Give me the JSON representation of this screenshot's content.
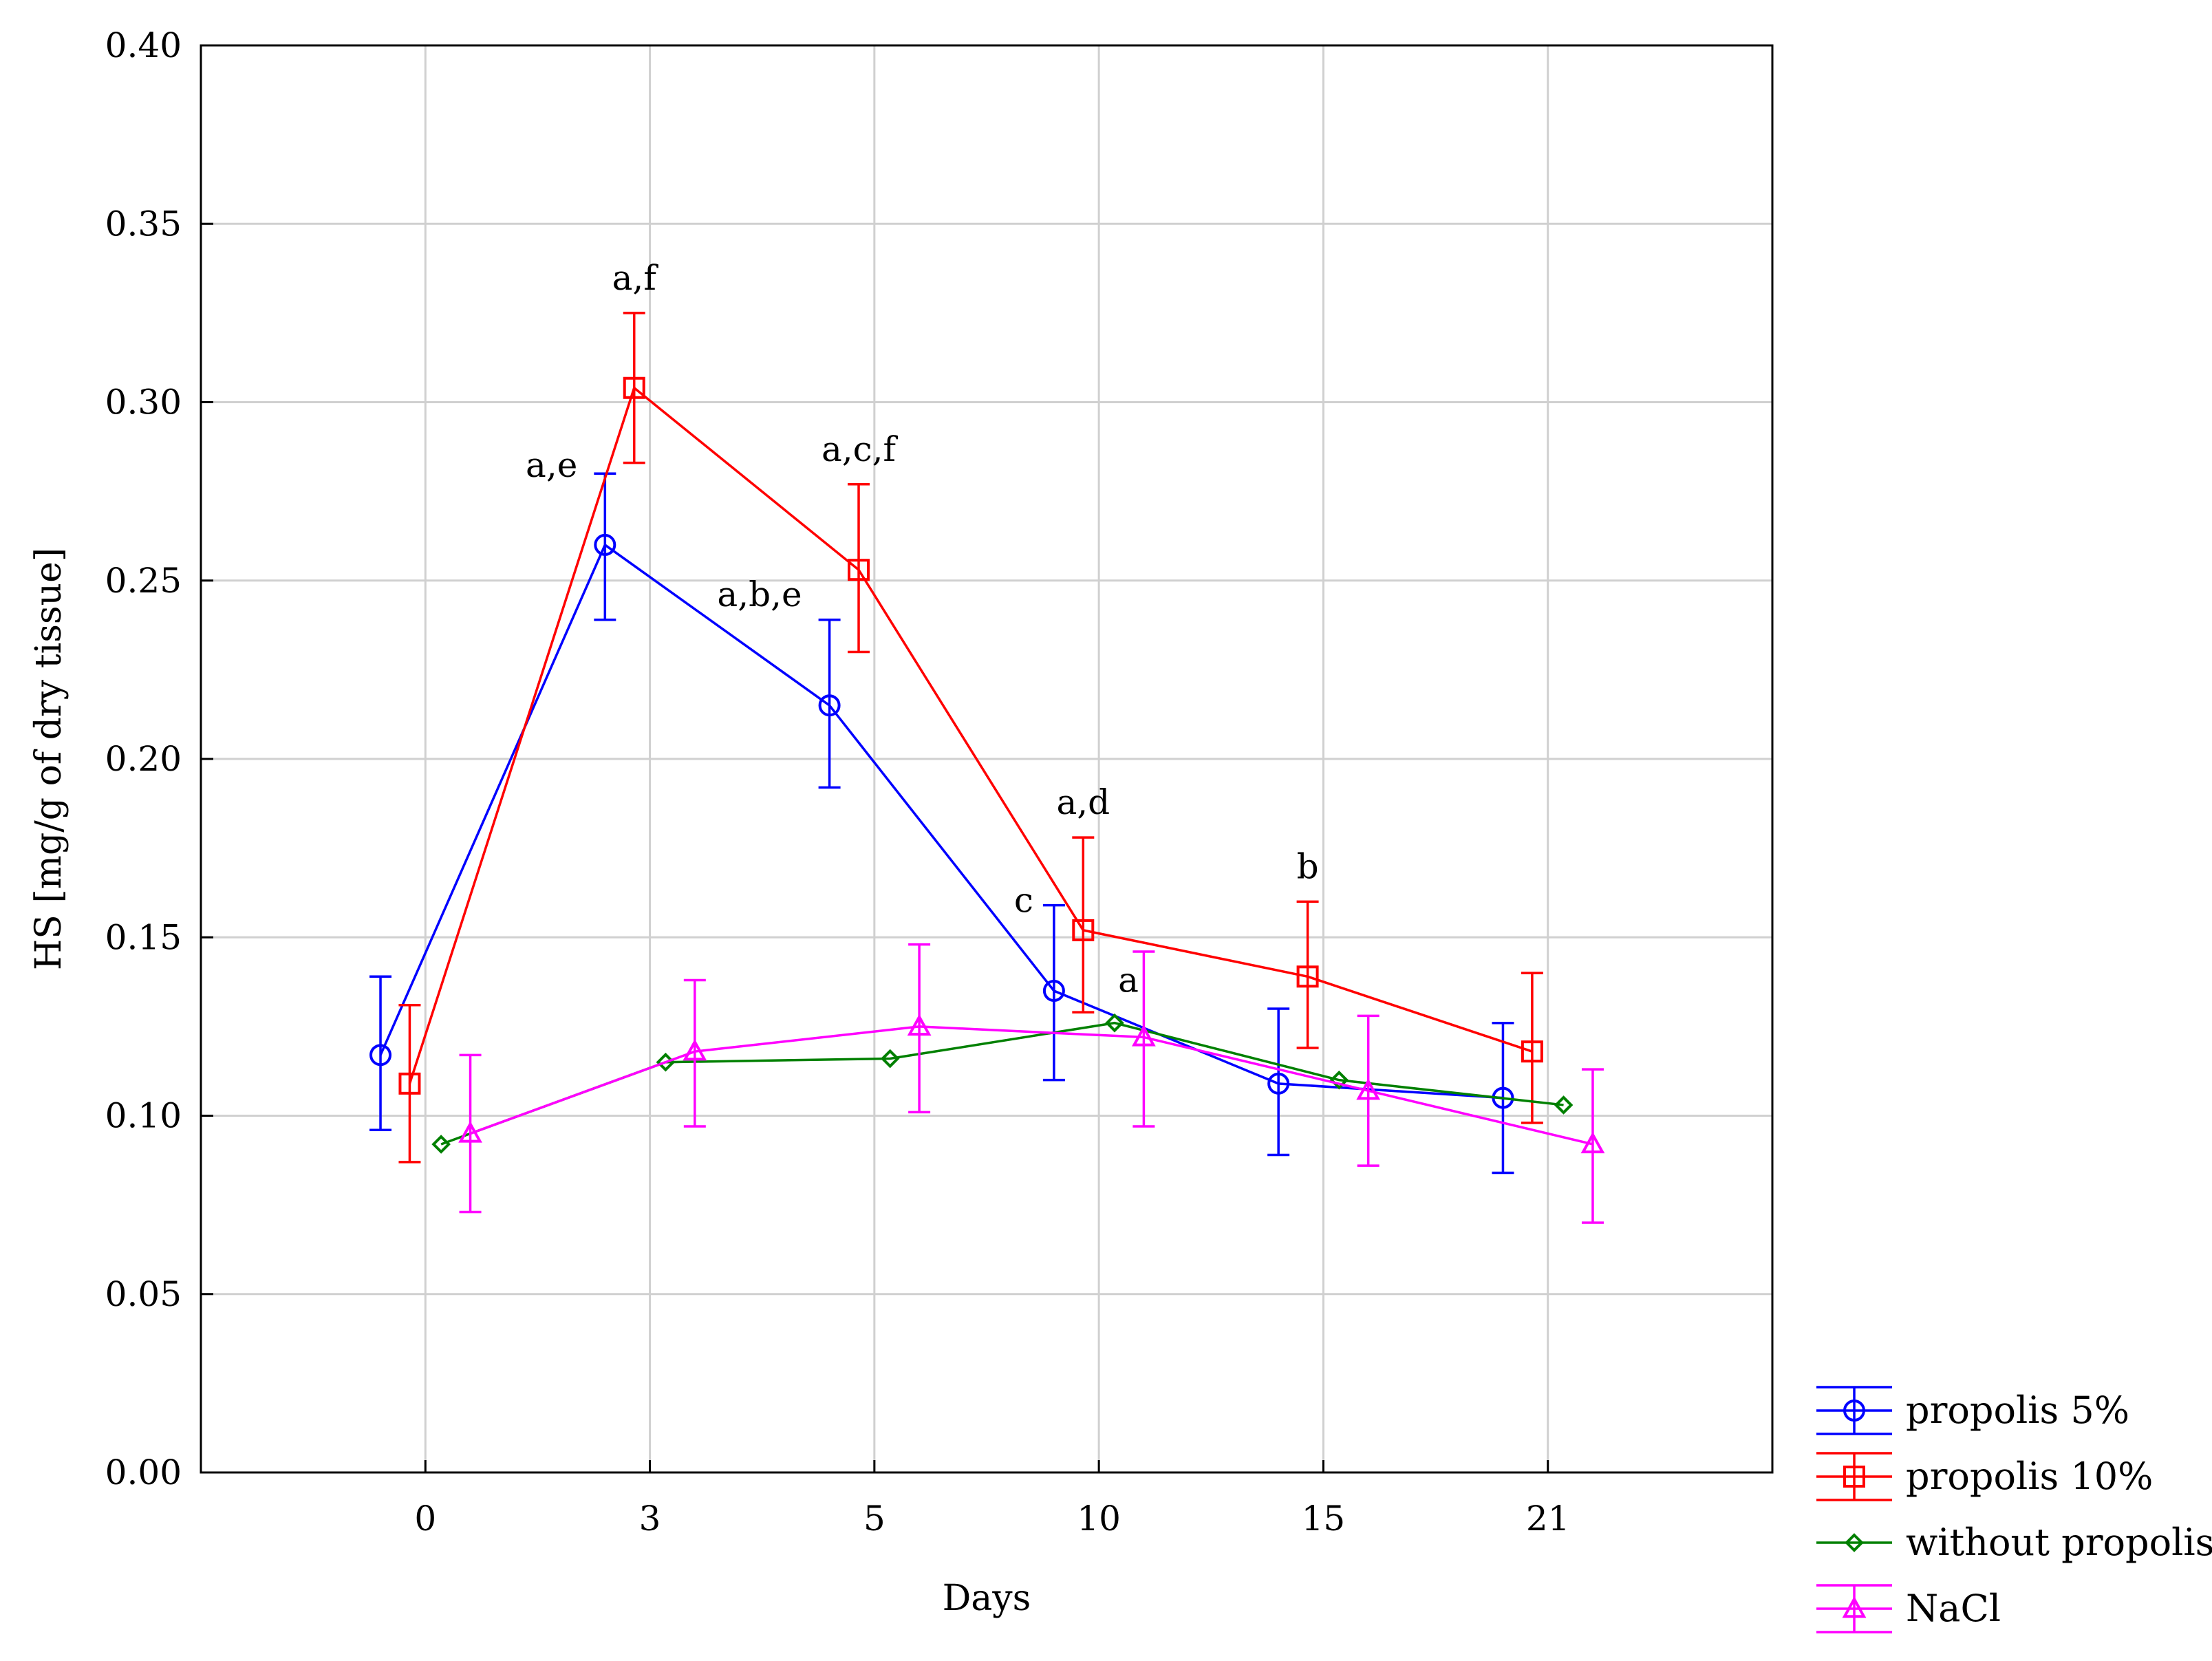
{
  "chart_data": {
    "type": "line",
    "title": "",
    "xlabel": "Days",
    "ylabel": "HS [mg/g of dry tissue]",
    "categories": [
      "0",
      "3",
      "5",
      "10",
      "15",
      "21"
    ],
    "ylim": [
      0,
      0.4
    ],
    "yticks": [
      "0.00",
      "0.05",
      "0.10",
      "0.15",
      "0.20",
      "0.25",
      "0.30",
      "0.35",
      "0.40"
    ],
    "grid": true,
    "legend_position": "bottom-right, outside plot",
    "series": [
      {
        "name": "propolis 5%",
        "color": "#0000ff",
        "marker": "circle",
        "values": [
          0.117,
          0.26,
          0.215,
          0.135,
          0.109,
          0.105
        ],
        "err_low": [
          0.096,
          0.239,
          0.192,
          0.11,
          0.089,
          0.084
        ],
        "err_high": [
          0.139,
          0.28,
          0.239,
          0.159,
          0.13,
          0.126
        ]
      },
      {
        "name": "propolis 10%",
        "color": "#ff0000",
        "marker": "square",
        "values": [
          0.109,
          0.304,
          0.253,
          0.152,
          0.139,
          0.118
        ],
        "err_low": [
          0.087,
          0.283,
          0.23,
          0.129,
          0.119,
          0.098
        ],
        "err_high": [
          0.131,
          0.325,
          0.277,
          0.178,
          0.16,
          0.14
        ]
      },
      {
        "name": "without propolis",
        "color": "#008000",
        "marker": "diamond",
        "values": [
          0.092,
          0.115,
          0.116,
          0.126,
          0.11,
          0.103
        ],
        "err_low": [
          null,
          null,
          null,
          null,
          null,
          null
        ],
        "err_high": [
          null,
          null,
          null,
          null,
          null,
          null
        ]
      },
      {
        "name": "NaCl",
        "color": "#ff00ff",
        "marker": "triangle",
        "values": [
          0.095,
          0.118,
          0.125,
          0.122,
          0.107,
          0.092
        ],
        "err_low": [
          0.073,
          0.097,
          0.101,
          0.097,
          0.086,
          0.07
        ],
        "err_high": [
          0.117,
          0.138,
          0.148,
          0.146,
          0.128,
          0.113
        ]
      }
    ],
    "annotations": [
      {
        "text": "a,e",
        "series": 0,
        "index": 1
      },
      {
        "text": "a,f",
        "series": 1,
        "index": 1
      },
      {
        "text": "a,b,e",
        "series": 0,
        "index": 2
      },
      {
        "text": "a,c,f",
        "series": 1,
        "index": 2
      },
      {
        "text": "a,d",
        "series": 1,
        "index": 3
      },
      {
        "text": "c",
        "series": 0,
        "index": 3
      },
      {
        "text": "a",
        "series": 2,
        "index": 3
      },
      {
        "text": "b",
        "series": 1,
        "index": 4
      }
    ]
  }
}
